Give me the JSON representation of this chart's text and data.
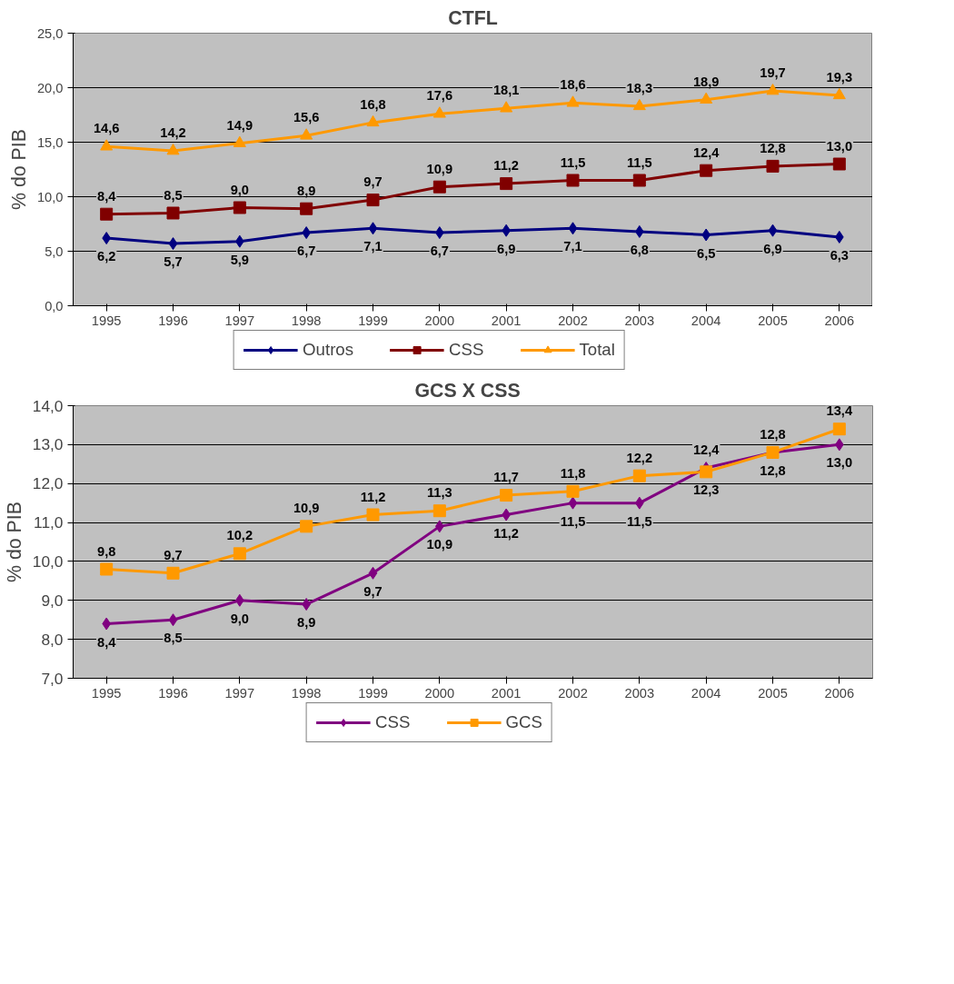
{
  "chart_data": [
    {
      "type": "line",
      "title": "CTFL",
      "ylabel": "% do PIB",
      "categories": [
        "1995",
        "1996",
        "1997",
        "1998",
        "1999",
        "2000",
        "2001",
        "2002",
        "2003",
        "2004",
        "2005",
        "2006"
      ],
      "series": [
        {
          "name": "Outros",
          "color": "#000080",
          "marker": "diamond",
          "values": [
            6.2,
            5.7,
            5.9,
            6.7,
            7.1,
            6.7,
            6.9,
            7.1,
            6.8,
            6.5,
            6.9,
            6.3
          ],
          "value_labels": [
            "6,2",
            "5,7",
            "5,9",
            "6,7",
            "7,1",
            "6,7",
            "6,9",
            "7,1",
            "6,8",
            "6,5",
            "6,9",
            "6,3"
          ]
        },
        {
          "name": "CSS",
          "color": "#800000",
          "marker": "square",
          "values": [
            8.4,
            8.5,
            9.0,
            8.9,
            9.7,
            10.9,
            11.2,
            11.5,
            11.5,
            12.4,
            12.8,
            13.0
          ],
          "value_labels": [
            "8,4",
            "8,5",
            "9,0",
            "8,9",
            "9,7",
            "10,9",
            "11,2",
            "11,5",
            "11,5",
            "12,4",
            "12,8",
            "13,0"
          ]
        },
        {
          "name": "Total",
          "color": "#ff9900",
          "marker": "triangle",
          "values": [
            14.6,
            14.2,
            14.9,
            15.6,
            16.8,
            17.6,
            18.1,
            18.6,
            18.3,
            18.9,
            19.7,
            19.3
          ],
          "value_labels": [
            "14,6",
            "14,2",
            "14,9",
            "15,6",
            "16,8",
            "17,6",
            "18,1",
            "18,6",
            "18,3",
            "18,9",
            "19,7",
            "19,3"
          ]
        }
      ],
      "ylim": [
        0,
        25
      ],
      "yticks": [
        {
          "value": 0,
          "label": "0,0"
        },
        {
          "value": 5,
          "label": "5,0"
        },
        {
          "value": 10,
          "label": "10,0"
        },
        {
          "value": 15,
          "label": "15,0"
        },
        {
          "value": 20,
          "label": "20,0"
        },
        {
          "value": 25,
          "label": "25,0"
        }
      ],
      "grid": "y",
      "legend": "bottom",
      "line_style": "solid"
    },
    {
      "type": "line",
      "title": "GCS  X  CSS",
      "ylabel": "% do PIB",
      "categories": [
        "1995",
        "1996",
        "1997",
        "1998",
        "1999",
        "2000",
        "2001",
        "2002",
        "2003",
        "2004",
        "2005",
        "2006"
      ],
      "series": [
        {
          "name": "CSS",
          "color": "#800080",
          "marker": "diamond",
          "values": [
            8.4,
            8.5,
            9.0,
            8.9,
            9.7,
            10.9,
            11.2,
            11.5,
            11.5,
            12.4,
            12.8,
            13.0
          ],
          "value_labels": [
            "8,4",
            "8,5",
            "9,0",
            "8,9",
            "9,7",
            "10,9",
            "11,2",
            "11,5",
            "11,5",
            "12,4",
            "12,8",
            "13,0"
          ]
        },
        {
          "name": "GCS",
          "color": "#ff9900",
          "marker": "square",
          "values": [
            9.8,
            9.7,
            10.2,
            10.9,
            11.2,
            11.3,
            11.7,
            11.8,
            12.2,
            12.3,
            12.8,
            13.4
          ],
          "value_labels": [
            "9,8",
            "9,7",
            "10,2",
            "10,9",
            "11,2",
            "11,3",
            "11,7",
            "11,8",
            "12,2",
            "12,3",
            "12,8",
            "13,4"
          ]
        }
      ],
      "ylim": [
        7,
        14
      ],
      "yticks": [
        {
          "value": 7,
          "label": "7,0"
        },
        {
          "value": 8,
          "label": "8,0"
        },
        {
          "value": 9,
          "label": "9,0"
        },
        {
          "value": 10,
          "label": "10,0"
        },
        {
          "value": 11,
          "label": "11,0"
        },
        {
          "value": 12,
          "label": "12,0"
        },
        {
          "value": 13,
          "label": "13,0"
        },
        {
          "value": 14,
          "label": "14,0"
        }
      ],
      "grid": "y",
      "legend": "bottom",
      "line_style": "solid"
    }
  ]
}
